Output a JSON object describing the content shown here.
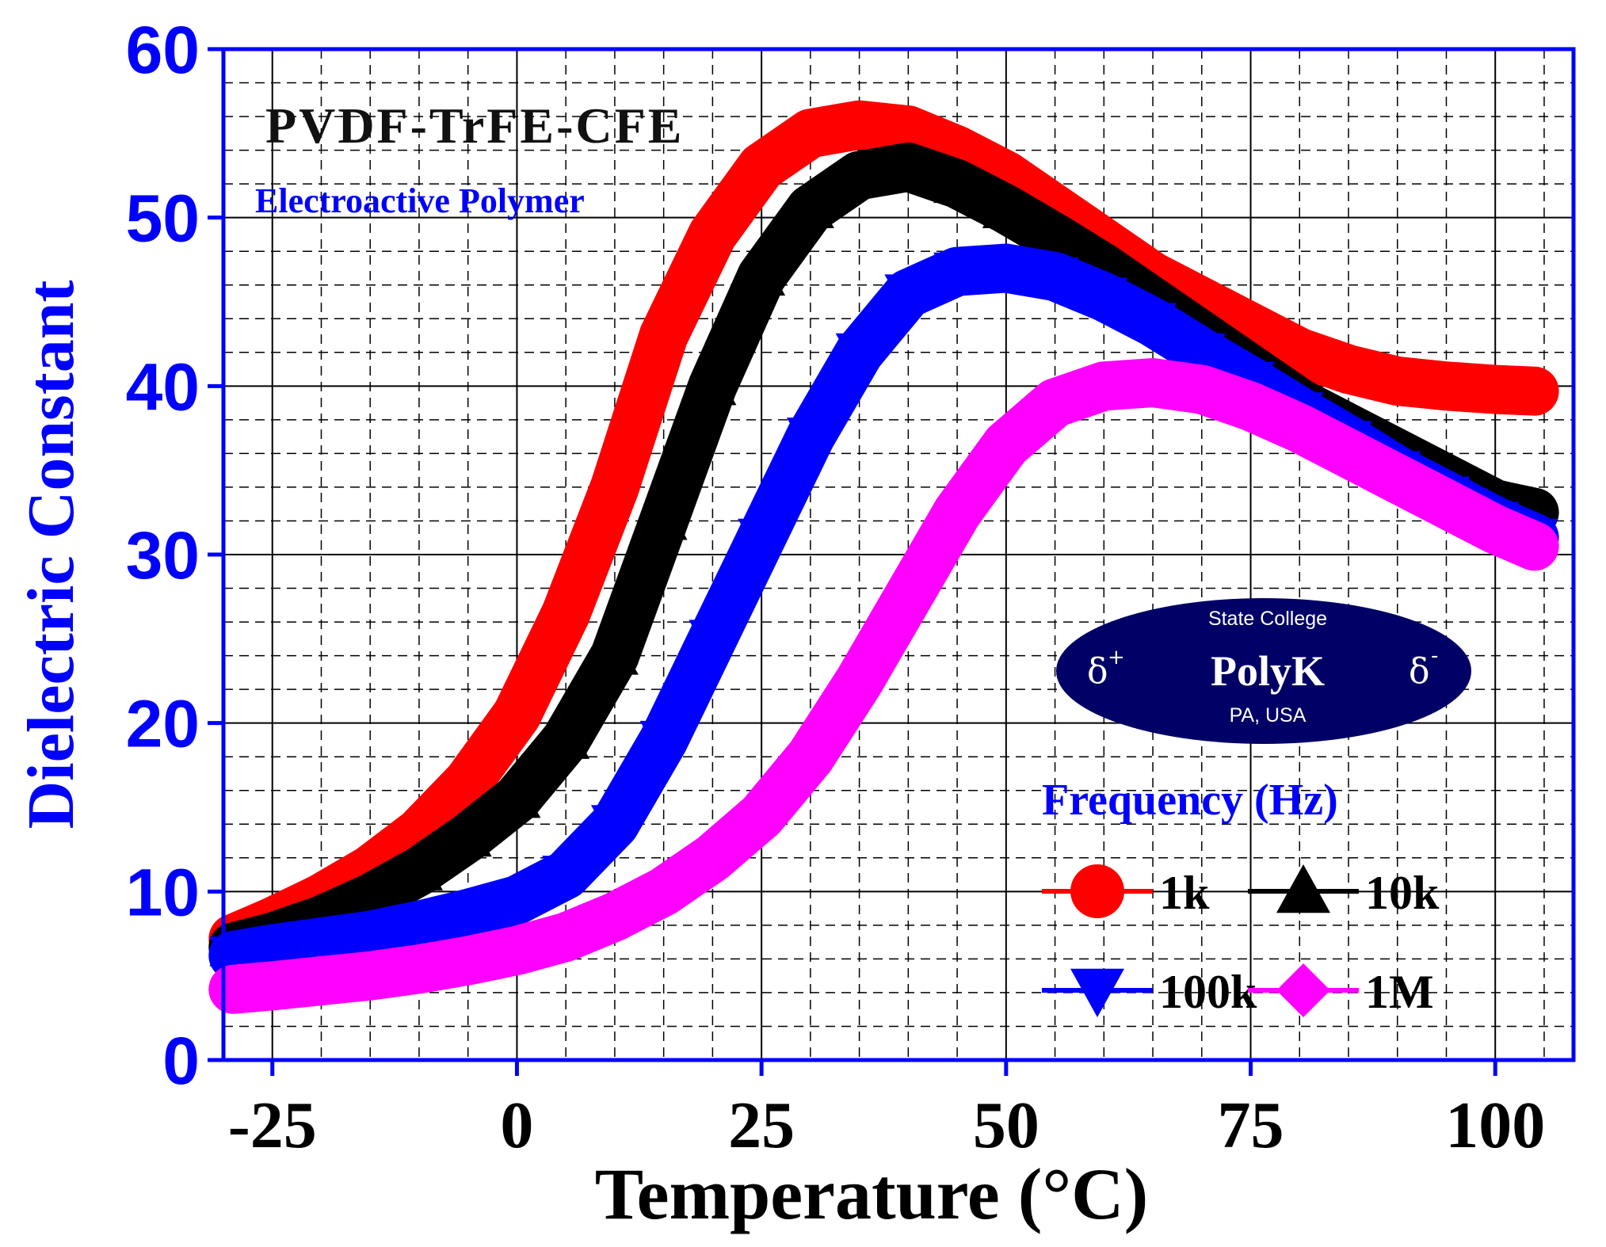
{
  "chart_data": {
    "type": "line",
    "title": "PVDF-TrFE-CFE",
    "subtitle": "Electroactive Polymer",
    "xlabel": "Temperature (°C)",
    "ylabel": "Dielectric Constant",
    "xlim": [
      -30,
      108
    ],
    "ylim": [
      0,
      60
    ],
    "xticks": [
      -25,
      0,
      25,
      50,
      75,
      100
    ],
    "yticks": [
      0,
      10,
      20,
      30,
      40,
      50,
      60
    ],
    "grid": true,
    "legend_title": "Frequency (Hz)",
    "legend_position": "bottom-right",
    "logo": {
      "top": "State College",
      "name": "PolyK",
      "bottom": "PA, USA",
      "left_symbol": "δ",
      "left_sup": "+",
      "right_symbol": "δ",
      "right_sup": "-"
    },
    "series": [
      {
        "name": "1k",
        "color": "#ff0000",
        "marker": "circle",
        "x": [
          -29,
          -25,
          -20,
          -15,
          -10,
          -5,
          0,
          5,
          10,
          15,
          20,
          25,
          30,
          35,
          40,
          45,
          50,
          55,
          60,
          65,
          70,
          75,
          80,
          85,
          90,
          95,
          100,
          104
        ],
        "y": [
          7.2,
          8.2,
          9.6,
          11.3,
          13.5,
          16.5,
          20.5,
          26.5,
          34,
          43,
          49,
          53,
          55,
          55.5,
          55.2,
          54,
          52.5,
          50.5,
          48.5,
          46.5,
          45,
          43.5,
          42,
          41,
          40.3,
          40,
          39.8,
          39.7
        ]
      },
      {
        "name": "10k",
        "color": "#000000",
        "marker": "triangle-up",
        "x": [
          -29,
          -25,
          -20,
          -15,
          -10,
          -5,
          0,
          5,
          10,
          15,
          20,
          25,
          30,
          35,
          40,
          45,
          50,
          55,
          60,
          65,
          70,
          75,
          80,
          85,
          90,
          95,
          100,
          104
        ],
        "y": [
          6.7,
          7.3,
          8.3,
          9.6,
          11.2,
          13.2,
          15.5,
          19,
          24,
          32,
          40,
          46.5,
          50.5,
          52.5,
          53,
          52,
          50.5,
          48.8,
          47,
          45,
          43,
          41,
          39,
          37.5,
          36,
          34.5,
          33,
          32.5
        ]
      },
      {
        "name": "100k",
        "color": "#0000ff",
        "marker": "triangle-down",
        "x": [
          -29,
          -25,
          -20,
          -15,
          -10,
          -5,
          0,
          5,
          10,
          15,
          20,
          25,
          30,
          35,
          40,
          45,
          50,
          55,
          60,
          65,
          70,
          75,
          80,
          85,
          90,
          95,
          100,
          104
        ],
        "y": [
          6.2,
          6.6,
          7,
          7.4,
          8,
          8.7,
          9.5,
          11,
          14,
          19,
          25,
          31,
          37,
          42,
          45.5,
          46.8,
          47,
          46.5,
          45.3,
          43.8,
          42,
          40.3,
          38.5,
          36.8,
          35,
          33.5,
          32,
          31
        ]
      },
      {
        "name": "1M",
        "color": "#ff00ff",
        "marker": "diamond",
        "x": [
          -29,
          -25,
          -20,
          -15,
          -10,
          -5,
          0,
          5,
          10,
          15,
          20,
          25,
          30,
          35,
          40,
          45,
          50,
          55,
          60,
          65,
          70,
          75,
          80,
          85,
          90,
          95,
          100,
          104
        ],
        "y": [
          4.2,
          4.4,
          4.7,
          5,
          5.4,
          5.9,
          6.5,
          7.3,
          8.5,
          10,
          12,
          14.5,
          18,
          22.5,
          27.5,
          32.5,
          36.5,
          39,
          40,
          40.2,
          39.8,
          38.8,
          37.5,
          36,
          34.5,
          33,
          31.5,
          30.5
        ]
      }
    ]
  }
}
